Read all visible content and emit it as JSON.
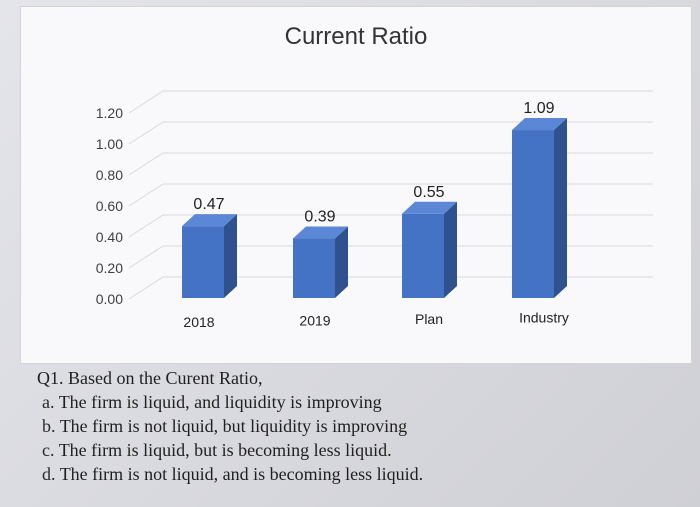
{
  "colors": {
    "bar_front": "#4472c4",
    "bar_top": "#5b87d6",
    "bar_side": "#2f528f",
    "grid": "#d9d9d9",
    "text": "#404040"
  },
  "chart_data": {
    "type": "bar",
    "title": "Current Ratio",
    "categories": [
      "2018",
      "2019",
      "Plan",
      "Industry"
    ],
    "values": [
      0.47,
      0.39,
      0.55,
      1.09
    ],
    "data_labels": [
      "0.47",
      "0.39",
      "0.55",
      "1.09"
    ],
    "ytick_labels": [
      "1.20",
      "1.00",
      "0.80",
      "0.60",
      "0.40",
      "0.20",
      "0.00"
    ],
    "ylim": [
      0,
      1.2
    ],
    "grid": true,
    "style": "3d-column",
    "xlabel": "",
    "ylabel": ""
  },
  "question": {
    "prompt": "Q1. Based on the Curent Ratio,",
    "options": [
      {
        "letter": "a.",
        "text": "The firm is liquid, and liquidity is improving"
      },
      {
        "letter": "b.",
        "text": "The firm is not liquid, but liquidity is improving"
      },
      {
        "letter": "c.",
        "text": "The firm is liquid, but is becoming less liquid."
      },
      {
        "letter": "d.",
        "text": "The firm is not liquid, and is becoming less liquid."
      }
    ]
  }
}
